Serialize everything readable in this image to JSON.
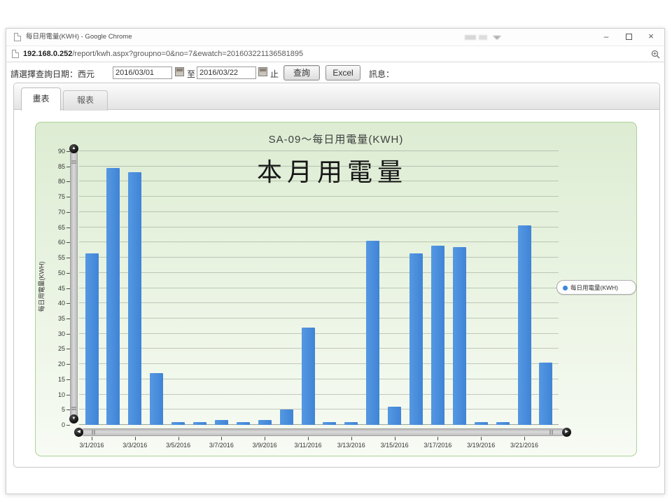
{
  "browser": {
    "title": "每日用電量(KWH) - Google Chrome",
    "url_host": "192.168.0.252",
    "url_path": "/report/kwh.aspx?groupno=0&no=7&ewatch=201603221136581895",
    "minimize_glyph": "–",
    "close_glyph": "×"
  },
  "toolbar": {
    "prompt_label": "請選擇查詢日期：西元",
    "date_from": "2016/03/01",
    "between_label": "至",
    "date_to": "2016/03/22",
    "end_label": "止",
    "query_button": "查詢",
    "excel_button": "Excel",
    "message_label": "訊息："
  },
  "tabs": {
    "chart_tab": "畫表",
    "report_tab": "報表"
  },
  "chart_data": {
    "type": "bar",
    "title": "SA-09～每日用電量(KWH)",
    "overlay_text": "本月用電量",
    "ylabel": "每日用電量(KWH)",
    "xlabel": "",
    "ylim": [
      0,
      90
    ],
    "ytick_step": 5,
    "grid": true,
    "legend_position": "right",
    "legend": [
      {
        "label": "每日用電量(KWH)",
        "color": "#3d85dd"
      }
    ],
    "bar_color": "#4a8edc",
    "categories": [
      "3/1/2016",
      "3/2/2016",
      "3/3/2016",
      "3/4/2016",
      "3/5/2016",
      "3/6/2016",
      "3/7/2016",
      "3/8/2016",
      "3/9/2016",
      "3/10/2016",
      "3/11/2016",
      "3/12/2016",
      "3/13/2016",
      "3/14/2016",
      "3/15/2016",
      "3/16/2016",
      "3/17/2016",
      "3/18/2016",
      "3/19/2016",
      "3/20/2016",
      "3/21/2016",
      "3/22/2016"
    ],
    "values": [
      56.5,
      84.5,
      83,
      17,
      1,
      1,
      1.5,
      1,
      1.5,
      5,
      32,
      1,
      1,
      60.5,
      6,
      56.5,
      59,
      58.5,
      1,
      1,
      65.5,
      20.5
    ],
    "xtick_labels": [
      "3/1/2016",
      "3/3/2016",
      "3/5/2016",
      "3/7/2016",
      "3/9/2016",
      "3/11/2016",
      "3/13/2016",
      "3/15/2016",
      "3/17/2016",
      "3/19/2016",
      "3/21/2016"
    ]
  },
  "icons": {
    "scroll_up": "▲",
    "scroll_down": "▼",
    "scroll_left": "◀",
    "scroll_right": "▶"
  }
}
